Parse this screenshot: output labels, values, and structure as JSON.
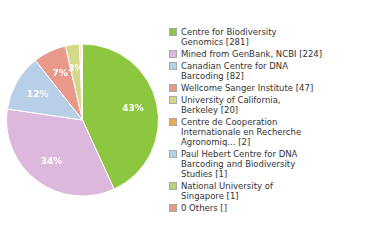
{
  "chart_data": {
    "type": "pie",
    "categories": [
      "Centre for Biodiversity\nGenomics [281]",
      "Mined from GenBank, NCBI [224]",
      "Canadian Centre for DNA\nBarcoding [82]",
      "Wellcome Sanger Institute [47]",
      "University of California,\nBerkeley [20]",
      "Centre de Cooperation\nInternationale en Recherche\nAgronomiq... [2]",
      "Paul Hebert Centre for DNA\nBarcoding and Biodiversity\nStudies [1]",
      "National University of\nSingapore [1]",
      "0 Others []"
    ],
    "values": [
      43,
      34,
      12,
      7,
      3,
      0.3,
      0.15,
      0.15,
      null
    ],
    "value_labels": [
      "43%",
      "34%",
      "12%",
      "7%",
      "3%",
      null,
      null,
      null,
      null
    ],
    "colors": [
      "#8dc63f",
      "#ddb8dd",
      "#b8cfe8",
      "#e8998a",
      "#d4d98a",
      "#e8a857",
      "#b8cfe8",
      "#b5d57a",
      "#e8998a"
    ],
    "data_labels": true,
    "legend": "right"
  }
}
